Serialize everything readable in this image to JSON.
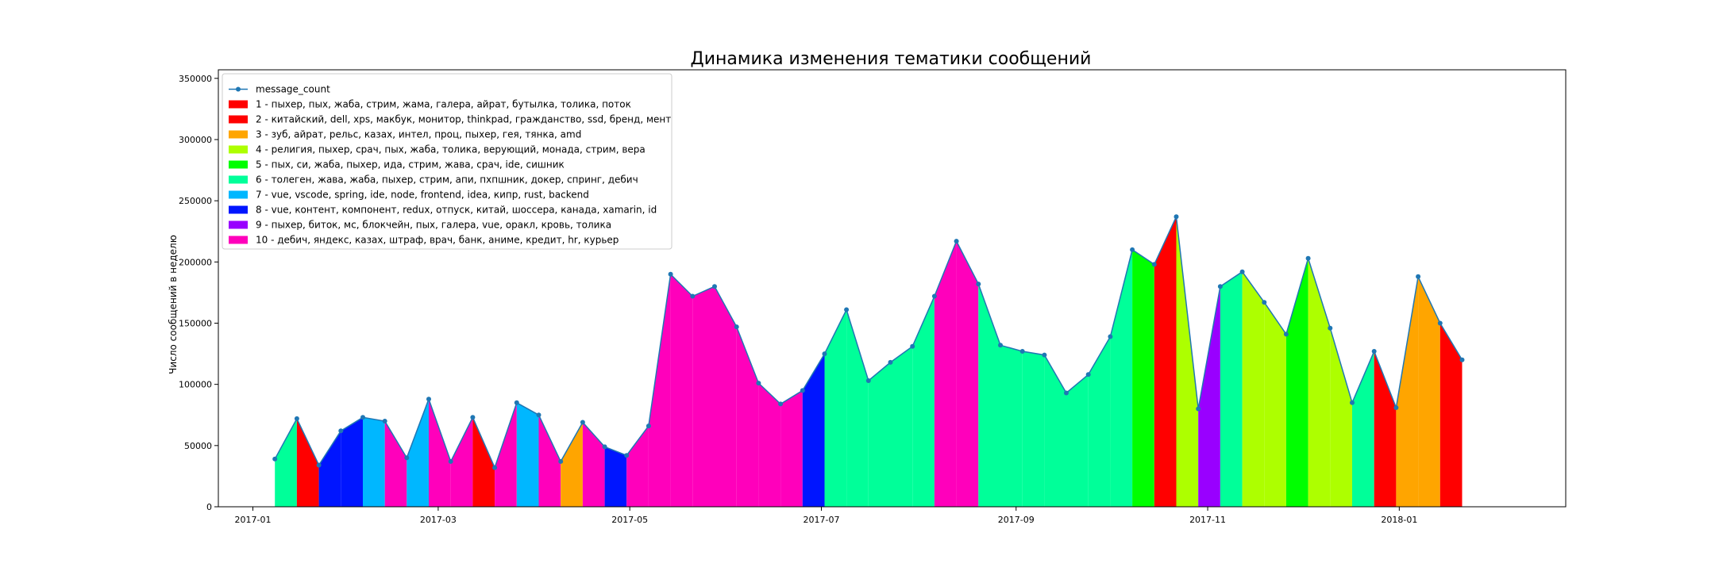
{
  "chart_data": {
    "type": "area",
    "title": "Динамика изменения тематики сообщений",
    "xlabel": "",
    "ylabel": "Число сообщений в неделю",
    "ylim": [
      0,
      357000
    ],
    "xlim": [
      "2016-12-21",
      "2018-02-23"
    ],
    "yticks": [
      0,
      50000,
      100000,
      150000,
      200000,
      250000,
      300000,
      350000
    ],
    "xticks": [
      "2017-01-01",
      "2017-03-01",
      "2017-05-01",
      "2017-07-01",
      "2017-09-01",
      "2017-11-01",
      "2018-01-01"
    ],
    "xtick_labels": [
      "2017-01",
      "2017-03",
      "2017-05",
      "2017-07",
      "2017-09",
      "2017-11",
      "2018-01"
    ],
    "grid": false,
    "legend_position": "top-left",
    "line_series": {
      "name": "message_count",
      "color": "#1f77b4",
      "x": [
        "2017-01-08",
        "2017-01-15",
        "2017-01-22",
        "2017-01-29",
        "2017-02-05",
        "2017-02-12",
        "2017-02-19",
        "2017-02-26",
        "2017-03-05",
        "2017-03-12",
        "2017-03-19",
        "2017-03-26",
        "2017-04-02",
        "2017-04-09",
        "2017-04-16",
        "2017-04-23",
        "2017-04-30",
        "2017-05-07",
        "2017-05-14",
        "2017-05-21",
        "2017-05-28",
        "2017-06-04",
        "2017-06-11",
        "2017-06-18",
        "2017-06-25",
        "2017-07-02",
        "2017-07-09",
        "2017-07-16",
        "2017-07-23",
        "2017-07-30",
        "2017-08-06",
        "2017-08-13",
        "2017-08-20",
        "2017-08-27",
        "2017-09-03",
        "2017-09-10",
        "2017-09-17",
        "2017-09-24",
        "2017-10-01",
        "2017-10-08",
        "2017-10-15",
        "2017-10-22",
        "2017-10-29",
        "2017-11-05",
        "2017-11-12",
        "2017-11-19",
        "2017-11-26",
        "2017-12-03",
        "2017-12-10",
        "2017-12-17",
        "2017-12-24",
        "2017-12-31",
        "2018-01-07",
        "2018-01-14",
        "2018-01-21"
      ],
      "values": [
        39000,
        72000,
        34000,
        62000,
        73000,
        70000,
        40000,
        88000,
        37000,
        73000,
        32000,
        85000,
        75000,
        37000,
        69000,
        49000,
        42000,
        66000,
        190000,
        172000,
        180000,
        147000,
        101000,
        84000,
        95000,
        125000,
        161000,
        103000,
        118000,
        131000,
        172000,
        217000,
        182000,
        132000,
        127000,
        124000,
        93000,
        108000,
        139000,
        210000,
        198000,
        237000,
        80000,
        180000,
        192000,
        167000,
        141000,
        203000,
        146000,
        85000,
        127000,
        81000,
        188000,
        150000,
        120000
      ]
    },
    "segment_topics": [
      6,
      2,
      8,
      8,
      7,
      10,
      7,
      10,
      10,
      2,
      10,
      7,
      10,
      3,
      10,
      8,
      10,
      10,
      10,
      10,
      10,
      10,
      10,
      10,
      8,
      6,
      6,
      6,
      6,
      6,
      10,
      10,
      6,
      6,
      6,
      6,
      6,
      6,
      6,
      5,
      2,
      4,
      9,
      6,
      4,
      4,
      5,
      4,
      4,
      6,
      2,
      3,
      3,
      2
    ],
    "topics": [
      {
        "id": 1,
        "label": "1 - пыхер, пых, жаба, стрим, жама, галера, айрат, бутылка, толика, поток",
        "color": "#ff0000"
      },
      {
        "id": 2,
        "label": "2 - китайский, dell, xps, макбук, монитор, thinkpad, гражданство, ssd, бренд, мент",
        "color": "#ff0000"
      },
      {
        "id": 3,
        "label": "3 - зуб, айрат, рельс, казах, интел, проц, пыхер, гея, тянка, amd",
        "color": "#ffa500"
      },
      {
        "id": 4,
        "label": "4 - религия, пыхер, срач, пых, жаба, толика, верующий, монада, стрим, вера",
        "color": "#adff00"
      },
      {
        "id": 5,
        "label": "5 - пых, си, жаба, пыхер, ида, стрим, жава, срач, ide, сишник",
        "color": "#00ff00"
      },
      {
        "id": 6,
        "label": "6 - толеген, жава, жаба, пыхер, стрим, апи, пхпшник, докер, спринг, дебич",
        "color": "#00ff99"
      },
      {
        "id": 7,
        "label": "7 - vue, vscode, spring, ide, node, frontend, idea, кипр, rust, backend",
        "color": "#00b7ff"
      },
      {
        "id": 8,
        "label": "8 - vue, контент, компонент, redux, отпуск, китай, шоссера, канада, xamarin, id",
        "color": "#0015ff"
      },
      {
        "id": 9,
        "label": "9 - пыхер, биток, мс, блокчейн, пых, галера, vue, оракл, кровь, толика",
        "color": "#9900ff"
      },
      {
        "id": 10,
        "label": "10 - дебич, яндекс, казах, штраф, врач, банк, аниме, кредит, hr, курьер",
        "color": "#ff00bb"
      }
    ]
  }
}
